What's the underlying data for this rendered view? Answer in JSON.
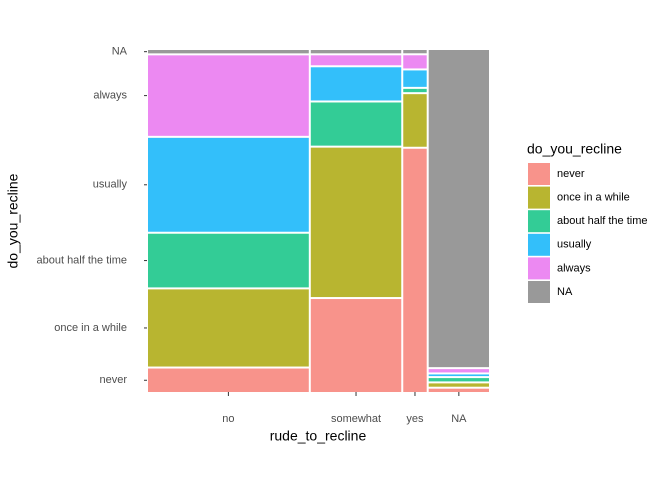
{
  "chart_data": {
    "type": "mosaic",
    "x_label": "rude_to_recline",
    "y_label": "do_you_recline",
    "legend_title": "do_you_recline",
    "legend_position": "right",
    "categories": [
      "no",
      "somewhat",
      "yes",
      "NA"
    ],
    "widths": [
      48,
      27,
      7,
      18
    ],
    "series": [
      {
        "name": "never",
        "color": "#f8938b",
        "values": [
          7,
          28,
          74,
          1
        ]
      },
      {
        "name": "once in a while",
        "color": "#b8b530",
        "values": [
          23,
          45,
          16,
          1
        ]
      },
      {
        "name": "about half the time",
        "color": "#33cc96",
        "values": [
          16,
          13,
          1,
          1
        ]
      },
      {
        "name": "usually",
        "color": "#33bffa",
        "values": [
          28,
          10,
          5,
          0.5
        ]
      },
      {
        "name": "always",
        "color": "#ec89f2",
        "values": [
          24,
          3,
          4,
          1
        ]
      },
      {
        "name": "NA",
        "color": "#999999",
        "values": [
          1,
          1,
          1,
          96
        ]
      }
    ]
  }
}
